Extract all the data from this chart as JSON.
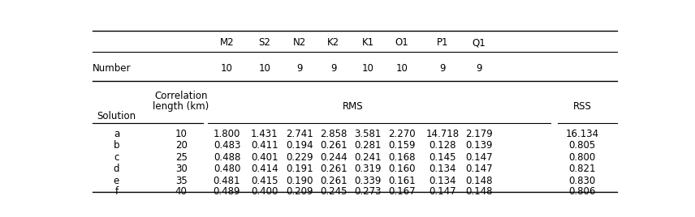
{
  "col_headers": [
    "M2",
    "S2",
    "N2",
    "K2",
    "K1",
    "O1",
    "P1",
    "Q1"
  ],
  "number_row": [
    "10",
    "10",
    "9",
    "9",
    "10",
    "10",
    "9",
    "9"
  ],
  "solutions": [
    "a",
    "b",
    "c",
    "d",
    "e",
    "f"
  ],
  "corr_lengths": [
    "10",
    "20",
    "25",
    "30",
    "35",
    "40"
  ],
  "rms_data": [
    [
      "1.800",
      "1.431",
      "2.741",
      "2.858",
      "3.581",
      "2.270",
      "14.718",
      "2.179"
    ],
    [
      "0.483",
      "0.411",
      "0.194",
      "0.261",
      "0.281",
      "0.159",
      "0.128",
      "0.139"
    ],
    [
      "0.488",
      "0.401",
      "0.229",
      "0.244",
      "0.241",
      "0.168",
      "0.145",
      "0.147"
    ],
    [
      "0.480",
      "0.414",
      "0.191",
      "0.261",
      "0.319",
      "0.160",
      "0.134",
      "0.147"
    ],
    [
      "0.481",
      "0.415",
      "0.190",
      "0.261",
      "0.339",
      "0.161",
      "0.134",
      "0.148"
    ],
    [
      "0.489",
      "0.400",
      "0.209",
      "0.245",
      "0.273",
      "0.167",
      "0.147",
      "0.148"
    ]
  ],
  "rss_data": [
    "16.134",
    "0.805",
    "0.800",
    "0.821",
    "0.830",
    "0.806"
  ],
  "bg_color": "#ffffff",
  "text_color": "#000000",
  "font_size": 8.5,
  "figwidth": 8.56,
  "figheight": 2.68,
  "dpi": 100
}
